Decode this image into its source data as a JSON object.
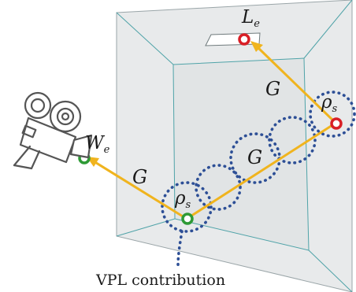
{
  "labels": {
    "light_emission_main": "L",
    "light_emission_sub": "e",
    "camera_importance_main": "W",
    "camera_importance_sub": "e",
    "brdf_main": "ρ",
    "brdf_sub": "s",
    "geometry_term": "G"
  },
  "caption": "VPL contribution",
  "colors": {
    "path": "#f0b41e",
    "light_vertex": "#d81f26",
    "camera_vertex": "#2e9a35",
    "vpl_dots": "#2d4f96",
    "room": "#e6e8e9",
    "room_edges": "#4fa3a8"
  },
  "icons": [
    "movie-camera-icon"
  ]
}
